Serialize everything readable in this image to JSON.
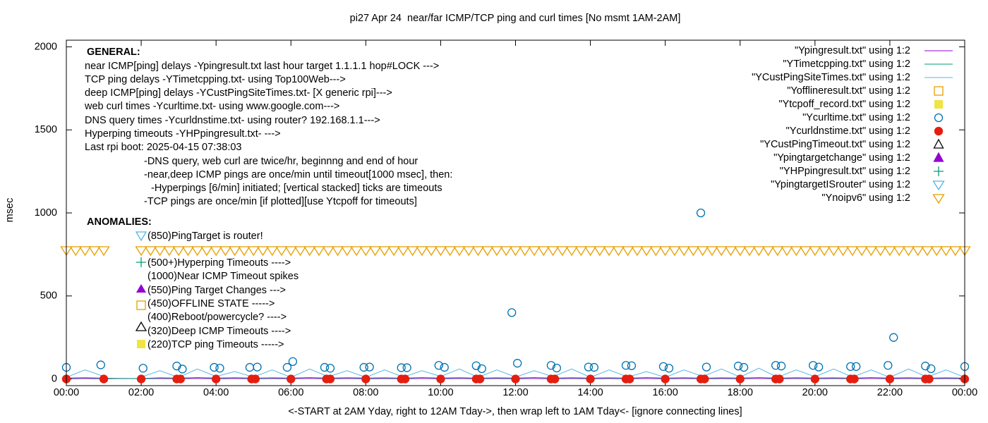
{
  "chart_data": {
    "type": "line",
    "title": "pi27 Apr 24  near/far ICMP/TCP ping and curl times [No msmt 1AM-2AM]",
    "xlabel": "<-START at 2AM Yday, right to 12AM Tday->, then wrap left to 1AM Tday<- [ignore connecting lines]",
    "ylabel": "msec",
    "xlim": [
      0,
      24
    ],
    "ylim": [
      -40,
      2040
    ],
    "xticks": [
      {
        "value": 0,
        "label": "00:00"
      },
      {
        "value": 2,
        "label": "02:00"
      },
      {
        "value": 4,
        "label": "04:00"
      },
      {
        "value": 6,
        "label": "06:00"
      },
      {
        "value": 8,
        "label": "08:00"
      },
      {
        "value": 10,
        "label": "10:00"
      },
      {
        "value": 12,
        "label": "12:00"
      },
      {
        "value": 14,
        "label": "14:00"
      },
      {
        "value": 16,
        "label": "16:00"
      },
      {
        "value": 18,
        "label": "18:00"
      },
      {
        "value": 20,
        "label": "20:00"
      },
      {
        "value": 22,
        "label": "22:00"
      },
      {
        "value": 24,
        "label": "00:00"
      }
    ],
    "yticks": [
      0,
      500,
      1000,
      1500,
      2000
    ],
    "grid": false,
    "legend": "top right",
    "x": [
      0,
      0.5,
      1,
      1.5,
      2,
      2.5,
      3,
      3.5,
      4,
      4.5,
      5,
      5.5,
      6,
      6.5,
      7,
      7.5,
      8,
      8.5,
      9,
      9.5,
      10,
      10.5,
      11,
      11.5,
      12,
      12.5,
      13,
      13.5,
      14,
      14.5,
      15,
      15.5,
      16,
      16.5,
      17,
      17.5,
      18,
      18.5,
      19,
      19.5,
      20,
      20.5,
      21,
      21.5,
      22,
      22.5,
      23,
      23.5,
      24
    ],
    "series": [
      {
        "name": "\"Ypingresult.txt\" using 1:2",
        "color": "#9400d3",
        "marker": "line",
        "values": [
          2,
          3,
          2,
          3,
          2,
          3,
          2,
          3,
          2,
          3,
          2,
          3,
          2,
          3,
          2,
          3,
          2,
          3,
          2,
          3,
          2,
          3,
          2,
          3,
          2,
          3,
          2,
          3,
          2,
          3,
          2,
          3,
          2,
          3,
          2,
          3,
          2,
          3,
          2,
          3,
          2,
          3,
          2,
          3,
          2,
          3,
          2,
          3,
          2
        ]
      },
      {
        "name": "\"YTimetcpping.txt\" using 1:2",
        "color": "#009e73",
        "marker": "line",
        "values": [
          6,
          8,
          5,
          3,
          3,
          7,
          5,
          9,
          6,
          8,
          5,
          7,
          6,
          9,
          5,
          8,
          6,
          7,
          5,
          9,
          6,
          8,
          5,
          7,
          6,
          9,
          5,
          8,
          6,
          7,
          5,
          9,
          6,
          8,
          5,
          7,
          6,
          9,
          5,
          8,
          6,
          7,
          5,
          9,
          6,
          8,
          5,
          7,
          6
        ]
      },
      {
        "name": "\"YCustPingSiteTimes.txt\" using 1:2",
        "color": "#56b4e9",
        "marker": "line",
        "values": [
          10,
          55,
          15,
          null,
          12,
          50,
          10,
          60,
          15,
          45,
          12,
          55,
          10,
          60,
          14,
          50,
          10,
          55,
          12,
          50,
          15,
          60,
          10,
          55,
          12,
          50,
          14,
          60,
          10,
          55,
          12,
          45,
          10,
          55,
          15,
          60,
          12,
          65,
          10,
          55,
          14,
          60,
          12,
          55,
          10,
          60,
          12,
          55,
          10
        ]
      },
      {
        "name": "\"Yofflineresult.txt\" using 1:2",
        "color": "#e69f00",
        "marker": "square",
        "x": [],
        "values": []
      },
      {
        "name": "\"Ytcpoff_record.txt\" using 1:2",
        "color": "#f0e442",
        "marker": "filled-square",
        "x": [],
        "values": []
      },
      {
        "name": "\"Ycurltime.txt\" using 1:2",
        "color": "#0072b2",
        "marker": "circle",
        "x": [
          0,
          0.92,
          2.05,
          2.95,
          3.1,
          3.95,
          4.1,
          4.9,
          5.1,
          5.9,
          6.05,
          6.9,
          7.05,
          7.95,
          8.1,
          8.95,
          9.1,
          9.95,
          10.1,
          10.95,
          11.1,
          11.9,
          12.05,
          12.95,
          13.1,
          13.95,
          14.1,
          14.95,
          15.1,
          15.95,
          16.1,
          16.95,
          17.1,
          17.95,
          18.1,
          18.95,
          19.1,
          19.95,
          20.1,
          20.95,
          21.1,
          21.95,
          22.1,
          22.95,
          23.1,
          24
        ],
        "values": [
          70,
          85,
          65,
          78,
          60,
          70,
          65,
          70,
          72,
          70,
          105,
          70,
          65,
          70,
          72,
          68,
          68,
          82,
          70,
          80,
          62,
          400,
          95,
          82,
          66,
          72,
          70,
          82,
          80,
          75,
          65,
          1000,
          72,
          78,
          70,
          82,
          78,
          82,
          72,
          75,
          75,
          82,
          250,
          78,
          62,
          75
        ]
      },
      {
        "name": "\"Ycurldnstime.txt\" using 1:2",
        "color": "#e51e10",
        "marker": "filled-circle",
        "x": [
          0,
          1,
          2,
          2.95,
          3.05,
          4,
          4.95,
          5.05,
          6,
          6.95,
          7.05,
          8,
          8.95,
          9.05,
          10,
          10.95,
          11.05,
          12,
          12.95,
          13.05,
          14,
          14.95,
          15.05,
          16,
          16.95,
          17.05,
          18,
          18.95,
          19.05,
          20,
          20.95,
          21.05,
          22,
          22.95,
          23.05,
          24
        ],
        "values": [
          0,
          0,
          0,
          0,
          0,
          0,
          0,
          0,
          0,
          0,
          0,
          0,
          0,
          0,
          0,
          0,
          0,
          0,
          0,
          0,
          0,
          0,
          0,
          0,
          0,
          0,
          0,
          0,
          0,
          0,
          0,
          0,
          0,
          0,
          0,
          0
        ]
      },
      {
        "name": "\"YCustPingTimeout.txt\" using 1:2",
        "color": "#000000",
        "marker": "triangle",
        "x": [],
        "values": []
      },
      {
        "name": "\"Ypingtargetchange\" using 1:2",
        "color": "#9400d3",
        "marker": "filled-triangle",
        "x": [],
        "values": []
      },
      {
        "name": "\"YHPpingresult.txt\" using 1:2",
        "color": "#009e73",
        "marker": "plus",
        "x": [],
        "values": []
      },
      {
        "name": "\"YpingtargetISrouter\" using 1:2",
        "color": "#56b4e9",
        "marker": "triangle-down",
        "x": [],
        "values": []
      },
      {
        "name": "\"Ynoipv6\" using 1:2",
        "color": "#e69f00",
        "marker": "triangle-down",
        "x": [
          0,
          0.25,
          0.5,
          0.75,
          1,
          2,
          2.25,
          2.5,
          2.75,
          3,
          3.25,
          3.5,
          3.75,
          4,
          4.25,
          4.5,
          4.75,
          5,
          5.25,
          5.5,
          5.75,
          6,
          6.25,
          6.5,
          6.75,
          7,
          7.25,
          7.5,
          7.75,
          8,
          8.25,
          8.5,
          8.75,
          9,
          9.25,
          9.5,
          9.75,
          10,
          10.25,
          10.5,
          10.75,
          11,
          11.25,
          11.5,
          11.75,
          12,
          12.25,
          12.5,
          12.75,
          13,
          13.25,
          13.5,
          13.75,
          14,
          14.25,
          14.5,
          14.75,
          15,
          15.25,
          15.5,
          15.75,
          16,
          16.25,
          16.5,
          16.75,
          17,
          17.25,
          17.5,
          17.75,
          18,
          18.25,
          18.5,
          18.75,
          19,
          19.25,
          19.5,
          19.75,
          20,
          20.25,
          20.5,
          20.75,
          21,
          21.25,
          21.5,
          21.75,
          22,
          22.25,
          22.5,
          22.75,
          23,
          23.25,
          23.5,
          23.75,
          24
        ],
        "values": [
          775,
          775,
          775,
          775,
          775,
          775,
          775,
          775,
          775,
          775,
          775,
          775,
          775,
          775,
          775,
          775,
          775,
          775,
          775,
          775,
          775,
          775,
          775,
          775,
          775,
          775,
          775,
          775,
          775,
          775,
          775,
          775,
          775,
          775,
          775,
          775,
          775,
          775,
          775,
          775,
          775,
          775,
          775,
          775,
          775,
          775,
          775,
          775,
          775,
          775,
          775,
          775,
          775,
          775,
          775,
          775,
          775,
          775,
          775,
          775,
          775,
          775,
          775,
          775,
          775,
          775,
          775,
          775,
          775,
          775,
          775,
          775,
          775,
          775,
          775,
          775,
          775,
          775,
          775,
          775,
          775,
          775,
          775,
          775,
          775,
          775,
          775,
          775,
          775,
          775,
          775,
          775,
          775,
          775
        ]
      }
    ],
    "annotations": [
      "GENERAL:",
      "near ICMP[ping] delays -Ypingresult.txt last hour target 1.1.1.1 hop#LOCK --->",
      "TCP ping delays -YTimetcpping.txt- using Top100Web--->",
      "deep ICMP[ping] delays -YCustPingSiteTimes.txt- [X generic rpi]--->",
      "web curl times -Ycurltime.txt- using www.google.com--->",
      "DNS query times -Ycurldnstime.txt- using router? 192.168.1.1--->",
      "Hyperping timeouts -YHPpingresult.txt- --->",
      "Last rpi boot: 2025-04-15 07:38:03",
      "-DNS query, web curl are twice/hr, beginnng and end of hour",
      "-near,deep ICMP pings are once/min until timeout[1000 msec], then:",
      "-Hyperpings [6/min] initiated; [vertical stacked] ticks are timeouts",
      "-TCP pings are once/min [if plotted][use Ytcpoff for timeouts]",
      "ANOMALIES:",
      "(850)PingTarget is router!",
      "(500+)Hyperping Timeouts ---->",
      "(1000)Near ICMP Timeout spikes",
      "(550)Ping Target Changes --->",
      "(450)OFFLINE STATE ----->",
      "(400)Reboot/powercycle? ---->",
      "(320)Deep ICMP Timeouts ---->",
      "(220)TCP ping Timeouts ----->"
    ]
  }
}
